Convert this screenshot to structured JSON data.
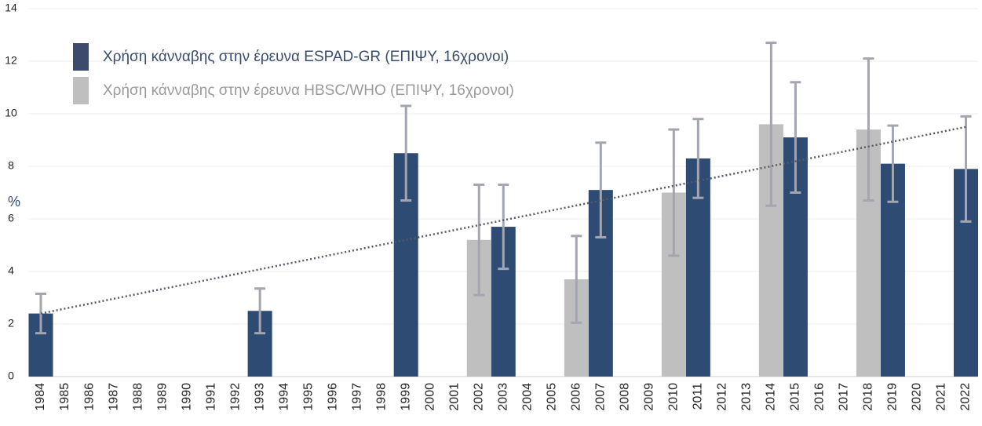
{
  "chart_data": {
    "type": "bar",
    "y_label": "%",
    "categories": [
      "1984",
      "1985",
      "1986",
      "1987",
      "1988",
      "1989",
      "1990",
      "1991",
      "1992",
      "1993",
      "1994",
      "1995",
      "1996",
      "1997",
      "1998",
      "1999",
      "2000",
      "2001",
      "2002",
      "2003",
      "2004",
      "2005",
      "2006",
      "2007",
      "2008",
      "2009",
      "2010",
      "2011",
      "2012",
      "2013",
      "2014",
      "2015",
      "2016",
      "2017",
      "2018",
      "2019",
      "2020",
      "2021",
      "2022"
    ],
    "series": [
      {
        "name": "Χρήση κάνναβης στην έρευνα ESPAD-GR (ΕΠΙΨΥ, 16χρονοι)",
        "color": "#2e4b73",
        "text_color": "#3a4c6b",
        "values": [
          2.4,
          null,
          null,
          null,
          null,
          null,
          null,
          null,
          null,
          2.5,
          null,
          null,
          null,
          null,
          null,
          8.5,
          null,
          null,
          null,
          5.7,
          null,
          null,
          null,
          7.1,
          null,
          null,
          null,
          8.3,
          null,
          null,
          null,
          9.1,
          null,
          null,
          null,
          8.1,
          null,
          null,
          7.9
        ],
        "errors": [
          0.75,
          null,
          null,
          null,
          null,
          null,
          null,
          null,
          null,
          0.85,
          null,
          null,
          null,
          null,
          null,
          1.8,
          null,
          null,
          null,
          1.6,
          null,
          null,
          null,
          1.8,
          null,
          null,
          null,
          1.5,
          null,
          null,
          null,
          2.1,
          null,
          null,
          null,
          1.45,
          null,
          null,
          2.0
        ]
      },
      {
        "name": "Χρήση κάνναβης στην έρευνα HBSC/WHO (ΕΠΙΨΥ, 16χρονοι)",
        "color": "#bfbfbf",
        "text_color": "#9a9a9a",
        "values": [
          null,
          null,
          null,
          null,
          null,
          null,
          null,
          null,
          null,
          null,
          null,
          null,
          null,
          null,
          null,
          null,
          null,
          null,
          5.2,
          null,
          null,
          null,
          3.7,
          null,
          null,
          null,
          7.0,
          null,
          null,
          null,
          9.6,
          null,
          null,
          null,
          9.4,
          null,
          null,
          null,
          null
        ],
        "errors": [
          null,
          null,
          null,
          null,
          null,
          null,
          null,
          null,
          null,
          null,
          null,
          null,
          null,
          null,
          null,
          null,
          null,
          null,
          2.1,
          null,
          null,
          null,
          1.65,
          null,
          null,
          null,
          2.4,
          null,
          null,
          null,
          3.1,
          null,
          null,
          null,
          2.7,
          null,
          null,
          null,
          null
        ]
      }
    ],
    "error_color": "#a3a6b1",
    "trendline": [
      2.4,
      9.5
    ],
    "trendline_color": "#555a66",
    "ylim": [
      0,
      14
    ],
    "yticks": [
      0,
      2,
      4,
      6,
      8,
      10,
      12,
      14
    ],
    "grid": true
  }
}
